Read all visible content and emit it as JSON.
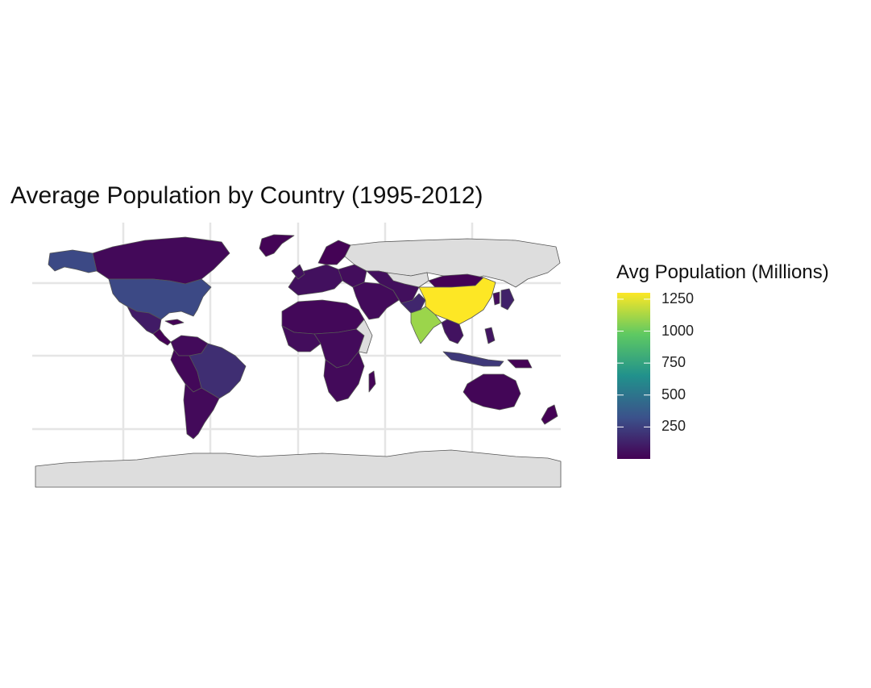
{
  "title": "Average Population by Country (1995-2012)",
  "legend": {
    "title": "Avg Population (Millions)",
    "ticks": [
      "1250",
      "1000",
      "750",
      "500",
      "250"
    ],
    "tick_values": [
      1250,
      1000,
      750,
      500,
      250
    ],
    "range": [
      0,
      1300
    ],
    "colormap": [
      "#440154",
      "#3b528b",
      "#21918c",
      "#5ec962",
      "#fde725"
    ]
  },
  "map": {
    "projection": "equirectangular",
    "no_data_color": "#dddddd",
    "border_color": "#555555",
    "grid_color": "#e5e5e5"
  },
  "chart_data": {
    "type": "choropleth",
    "title": "Average Population by Country (1995-2012)",
    "value_label": "Avg Population (Millions)",
    "scale_range": [
      0,
      1300
    ],
    "grid": true,
    "legend_position": "right",
    "regions": [
      {
        "name": "China",
        "value": 1300
      },
      {
        "name": "India",
        "value": 1100
      },
      {
        "name": "United States",
        "value": 290
      },
      {
        "name": "Indonesia",
        "value": 220
      },
      {
        "name": "Brazil",
        "value": 180
      },
      {
        "name": "Russia",
        "value": null
      },
      {
        "name": "Antarctica",
        "value": null
      }
    ]
  }
}
